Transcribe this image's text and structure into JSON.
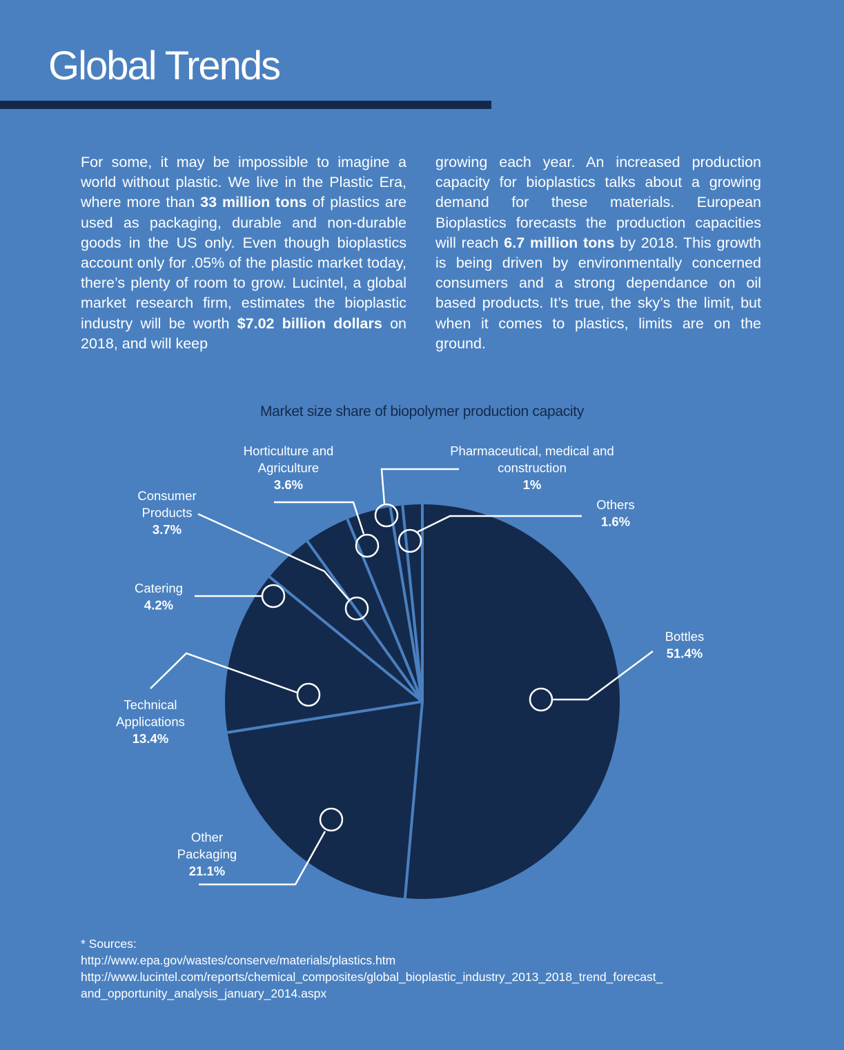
{
  "page": {
    "title": "Global Trends",
    "left_column": [
      {
        "t": "For some, it may be impossible to imagine a world without plastic. We live in the Plastic Era, where more than "
      },
      {
        "t": "33 million tons",
        "b": true
      },
      {
        "t": " of plastics are used as packaging, durable and non-durable goods in the US only. Even though bioplastics account only for .05% of the plastic market today, there’s plenty of room to grow. Lucintel, a global market research firm, estimates the bioplastic industry will be worth "
      },
      {
        "t": "$7.02 billion dollars",
        "b": true
      },
      {
        "t": " on 2018, and will keep"
      }
    ],
    "right_column": [
      {
        "t": "growing each year. An increased production capacity for bioplastics talks about a growing demand for these materials. European Bioplastics forecasts the production capacities will reach "
      },
      {
        "t": "6.7 million tons",
        "b": true
      },
      {
        "t": " by 2018. This growth is being driven by environmentally concerned consumers and a strong dependance on oil based products. It’s true, the sky’s the limit, but when it comes to plastics, limits are on the ground."
      }
    ],
    "sources_heading": "* Sources:",
    "sources": [
      "http://www.epa.gov/wastes/conserve/materials/plastics.htm",
      "http://www.lucintel.com/reports/chemical_composites/global_bioplastic_industry_2013_2018_trend_forecast_",
      "and_opportunity_analysis_january_2014.aspx"
    ]
  },
  "colors": {
    "background": "#4a80c0",
    "pie_fill": "#142a4c",
    "separator": "#4a80c0",
    "title_rule": "#14294a",
    "chart_title": "#14294a",
    "text": "#ffffff"
  },
  "chart_data": {
    "type": "pie",
    "title": "Market size share of biopolymer production capacity",
    "slices": [
      {
        "lines": [
          "Bottles"
        ],
        "display": "51.4%",
        "value": 51.4
      },
      {
        "lines": [
          "Other",
          "Packaging"
        ],
        "display": "21.1%",
        "value": 21.1
      },
      {
        "lines": [
          "Technical",
          "Applications"
        ],
        "display": "13.4%",
        "value": 13.4
      },
      {
        "lines": [
          "Catering"
        ],
        "display": "4.2%",
        "value": 4.2
      },
      {
        "lines": [
          "Consumer",
          "Products"
        ],
        "display": "3.7%",
        "value": 3.7
      },
      {
        "lines": [
          "Horticulture and",
          "Agriculture"
        ],
        "display": "3.6%",
        "value": 3.6
      },
      {
        "lines": [
          "Pharmaceutical, medical and",
          "construction"
        ],
        "display": "1%",
        "value": 1
      },
      {
        "lines": [
          "Others"
        ],
        "display": "1.6%",
        "value": 1.6
      }
    ]
  }
}
